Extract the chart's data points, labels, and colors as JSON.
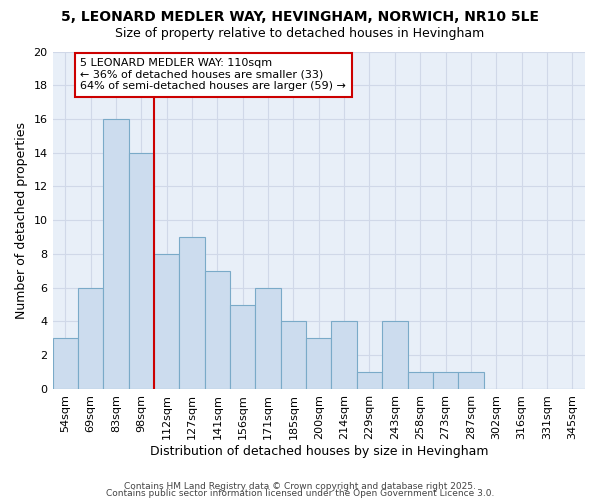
{
  "title1": "5, LEONARD MEDLER WAY, HEVINGHAM, NORWICH, NR10 5LE",
  "title2": "Size of property relative to detached houses in Hevingham",
  "xlabel": "Distribution of detached houses by size in Hevingham",
  "ylabel": "Number of detached properties",
  "categories": [
    "54sqm",
    "69sqm",
    "83sqm",
    "98sqm",
    "112sqm",
    "127sqm",
    "141sqm",
    "156sqm",
    "171sqm",
    "185sqm",
    "200sqm",
    "214sqm",
    "229sqm",
    "243sqm",
    "258sqm",
    "273sqm",
    "287sqm",
    "302sqm",
    "316sqm",
    "331sqm",
    "345sqm"
  ],
  "bar_heights": [
    3,
    6,
    16,
    14,
    8,
    9,
    7,
    5,
    6,
    4,
    3,
    4,
    1,
    4,
    1,
    1,
    1,
    0,
    0,
    0,
    0
  ],
  "bar_color": "#ccdcee",
  "bar_edge_color": "#7aaac8",
  "bar_edge_width": 0.8,
  "vline_x": 4.0,
  "vline_color": "#cc0000",
  "annotation_line1": "5 LEONARD MEDLER WAY: 110sqm",
  "annotation_line2": "← 36% of detached houses are smaller (33)",
  "annotation_line3": "64% of semi-detached houses are larger (59) →",
  "annotation_box_color": "#cc0000",
  "ylim": [
    0,
    20
  ],
  "yticks": [
    0,
    2,
    4,
    6,
    8,
    10,
    12,
    14,
    16,
    18,
    20
  ],
  "grid_color": "#d0d8e8",
  "bg_color": "#e8eff8",
  "footer1": "Contains HM Land Registry data © Crown copyright and database right 2025.",
  "footer2": "Contains public sector information licensed under the Open Government Licence 3.0.",
  "title_fontsize": 10,
  "subtitle_fontsize": 9,
  "axis_label_fontsize": 9,
  "tick_fontsize": 8,
  "annotation_fontsize": 8
}
